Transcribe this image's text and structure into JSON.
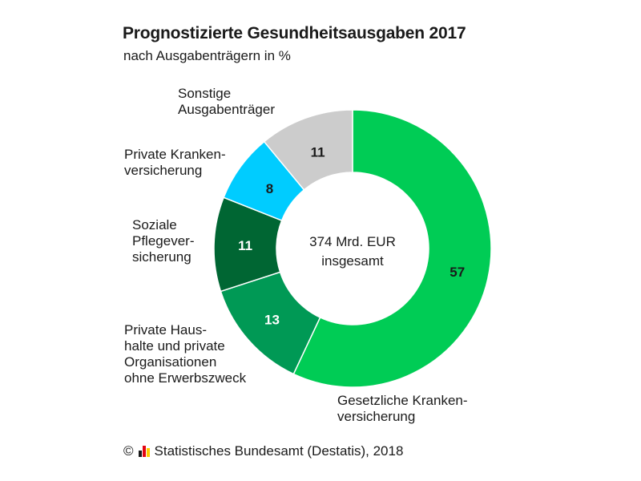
{
  "title": "Prognostizierte Gesundheitsausgaben 2017",
  "subtitle": "nach Ausgabenträgern in %",
  "center": {
    "line1": "374 Mrd. EUR",
    "line2": "insgesamt"
  },
  "footer": {
    "copyright_symbol": "©",
    "text": "Statistisches Bundesamt (Destatis), 2018"
  },
  "chart_data": {
    "type": "pie",
    "donut": true,
    "unit": "%",
    "total_label": "374 Mrd. EUR insgesamt",
    "slices": [
      {
        "value": 57,
        "value_label": "57",
        "label_lines": [
          "Gesetzliche Kranken-",
          "versicherung"
        ],
        "color": "#00cc55",
        "text_color": "#1a1a1a"
      },
      {
        "value": 13,
        "value_label": "13",
        "label_lines": [
          "Private Haus-",
          "halte und private",
          "Organisationen",
          "ohne Erwerbszweck"
        ],
        "color": "#009955",
        "text_color": "#ffffff"
      },
      {
        "value": 11,
        "value_label": "11",
        "label_lines": [
          "Soziale",
          "Pflegever-",
          "sicherung"
        ],
        "color": "#006633",
        "text_color": "#ffffff"
      },
      {
        "value": 8,
        "value_label": "8",
        "label_lines": [
          "Private Kranken-",
          "versicherung"
        ],
        "color": "#00ccff",
        "text_color": "#1a1a1a"
      },
      {
        "value": 11,
        "value_label": "11",
        "label_lines": [
          "Sonstige",
          "Ausgabenträger"
        ],
        "color": "#cccccc",
        "text_color": "#1a1a1a"
      }
    ]
  }
}
